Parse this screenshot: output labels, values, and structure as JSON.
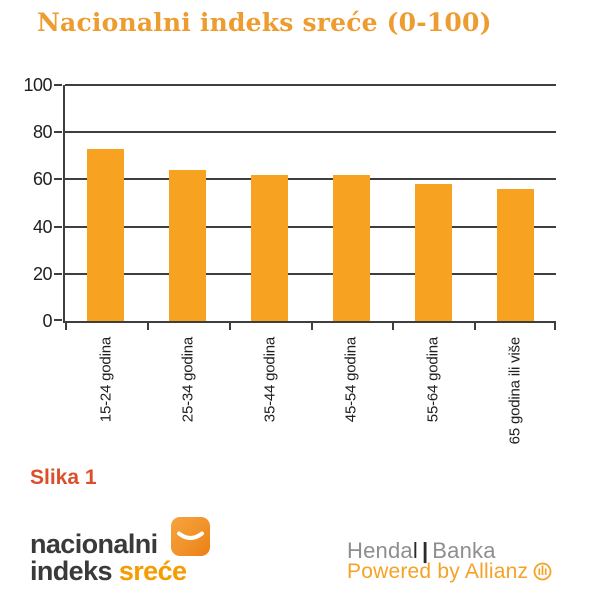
{
  "title": "Nacionalni indeks sreće (0-100)",
  "title_color": "#ED9C2F",
  "caption": "Slika 1",
  "caption_color": "#DC4F2B",
  "chart_data": {
    "type": "bar",
    "title": "Nacionalni indeks sreće (0-100)",
    "categories": [
      "15-24 godina",
      "25-34 godina",
      "35-44 godina",
      "45-54 godina",
      "55-64 godina",
      "65 godina ili više"
    ],
    "values": [
      73,
      64,
      62,
      62,
      58,
      56
    ],
    "xlabel": "",
    "ylabel": "",
    "ylim": [
      0,
      100
    ],
    "yticks": [
      0,
      20,
      40,
      60,
      80,
      100
    ],
    "grid": true,
    "legend_position": "none",
    "bar_color": "#F7A321",
    "axis_color": "#3E3E3E",
    "tick_label_color": "#1F1F1F"
  },
  "footer": {
    "logo": {
      "line1": "nacionalni",
      "line2_dark": "indeks ",
      "line2_accent": "sreće",
      "dark_color": "#3A3A39",
      "accent_color": "#F59C00",
      "icon": "smile-in-rounded-square"
    },
    "agency": {
      "name_gray": "Henda",
      "name_black": "l",
      "separator": "|",
      "partner": "Banka"
    },
    "powered": {
      "label": "Powered by",
      "brand": "Allianz",
      "icon": "allianz-eagle-circle",
      "color": "#F5A227"
    }
  }
}
